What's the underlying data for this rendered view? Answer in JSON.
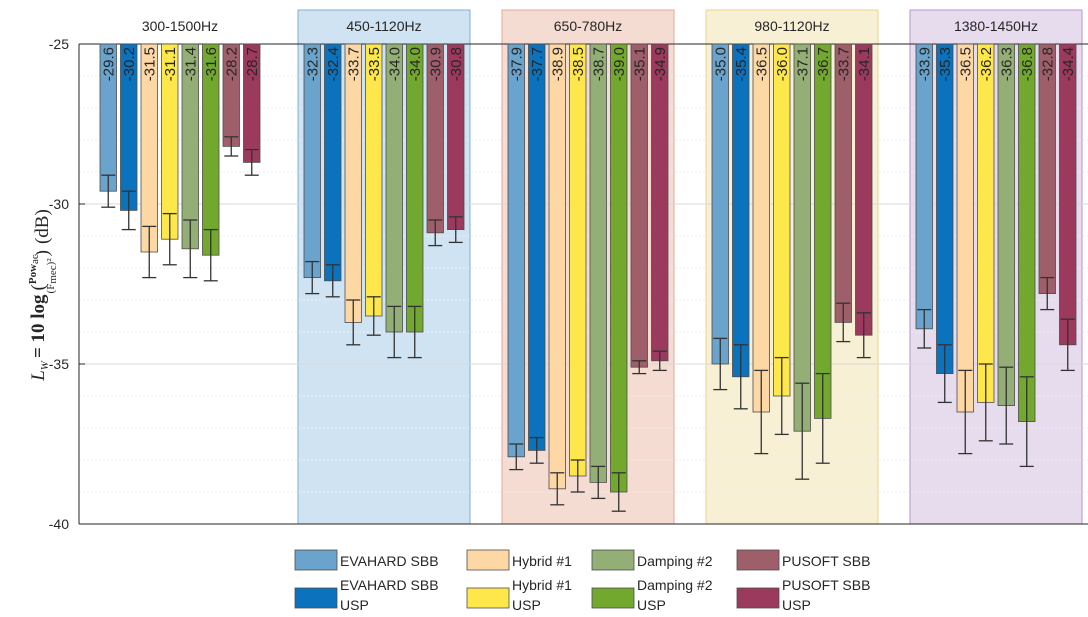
{
  "chart_data": {
    "type": "bar",
    "categories": [
      "300-1500Hz",
      "450-1120Hz",
      "650-780Hz",
      "980-1120Hz",
      "1380-1450Hz"
    ],
    "ylim": [
      -40,
      -25
    ],
    "yticks": [
      -40,
      -35,
      -30,
      -25
    ],
    "ylabel": {
      "lhs": "L",
      "sub": "W",
      "rhs": "= 10 log",
      "numerator": "Pow",
      "numerator_sub": "ac.",
      "denominator": "(F",
      "denominator_sub": "mec",
      "denominator_exp": ")²",
      "unit": "(dB)"
    },
    "grid": "horizontal-minor",
    "legend_position": "bottom",
    "highlighted_groups": [
      {
        "category": "450-1120Hz",
        "color": "#cfe3f2"
      },
      {
        "category": "650-780Hz",
        "color": "#f5dcd3"
      },
      {
        "category": "980-1120Hz",
        "color": "#f8f0d5"
      },
      {
        "category": "1380-1450Hz",
        "color": "#e7dcee"
      }
    ],
    "series": [
      {
        "name": "EVAHARD SBB",
        "legend_lines": [
          "EVAHARD SBB"
        ],
        "color": "#6aa3cc",
        "values": [
          -29.6,
          -32.3,
          -37.9,
          -35.0,
          -33.9
        ],
        "errors": [
          0.5,
          0.5,
          0.4,
          0.8,
          0.6
        ]
      },
      {
        "name": "EVAHARD SBB USP",
        "legend_lines": [
          "EVAHARD SBB",
          "USP"
        ],
        "color": "#0b72bd",
        "values": [
          -30.2,
          -32.4,
          -37.7,
          -35.4,
          -35.3
        ],
        "errors": [
          0.6,
          0.5,
          0.4,
          1.0,
          0.9
        ]
      },
      {
        "name": "Hybrid #1",
        "legend_lines": [
          "Hybrid #1"
        ],
        "color": "#fdd8a5",
        "values": [
          -31.5,
          -33.7,
          -38.9,
          -36.5,
          -36.5
        ],
        "errors": [
          0.8,
          0.7,
          0.5,
          1.3,
          1.3
        ]
      },
      {
        "name": "Hybrid #1 USP",
        "legend_lines": [
          "Hybrid #1",
          "USP"
        ],
        "color": "#fde74a",
        "values": [
          -31.1,
          -33.5,
          -38.5,
          -36.0,
          -36.2
        ],
        "errors": [
          0.8,
          0.6,
          0.5,
          1.2,
          1.2
        ]
      },
      {
        "name": "Damping #2",
        "legend_lines": [
          "Damping #2"
        ],
        "color": "#94af75",
        "values": [
          -31.4,
          -34.0,
          -38.7,
          -37.1,
          -36.3
        ],
        "errors": [
          0.9,
          0.8,
          0.5,
          1.5,
          1.2
        ]
      },
      {
        "name": "Damping #2 USP",
        "legend_lines": [
          "Damping #2",
          "USP"
        ],
        "color": "#72a82e",
        "values": [
          -31.6,
          -34.0,
          -39.0,
          -36.7,
          -36.8
        ],
        "errors": [
          0.8,
          0.8,
          0.6,
          1.4,
          1.4
        ]
      },
      {
        "name": "PUSOFT SBB",
        "legend_lines": [
          "PUSOFT SBB"
        ],
        "color": "#9e5e6a",
        "values": [
          -28.2,
          -30.9,
          -35.1,
          -33.7,
          -32.8
        ],
        "errors": [
          0.3,
          0.4,
          0.2,
          0.6,
          0.5
        ]
      },
      {
        "name": "PUSOFT SBB USP",
        "legend_lines": [
          "PUSOFT SBB",
          "USP"
        ],
        "color": "#9b3a5c",
        "values": [
          -28.7,
          -30.8,
          -34.9,
          -34.1,
          -34.4
        ],
        "errors": [
          0.4,
          0.4,
          0.3,
          0.7,
          0.8
        ]
      }
    ]
  }
}
